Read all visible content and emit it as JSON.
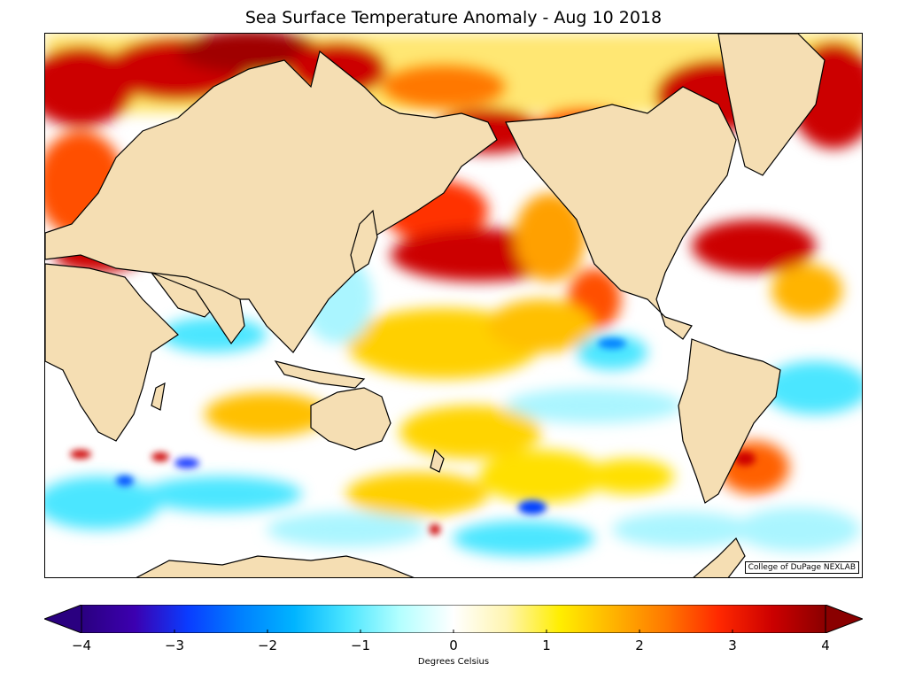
{
  "title": "Sea Surface Temperature Anomaly - Aug 10 2018",
  "credit": "College of DuPage NEXLAB",
  "colorbar": {
    "label": "Degrees Celsius",
    "min": -4,
    "max": 4,
    "ticks": [
      "−4",
      "−3",
      "−2",
      "−1",
      "0",
      "1",
      "2",
      "3",
      "4"
    ],
    "extend": "both",
    "colors": [
      "#2a0080",
      "#3c00b0",
      "#0a3cff",
      "#0080ff",
      "#00b4ff",
      "#4ce6ff",
      "#b4ffff",
      "#ffffff",
      "#fff5b0",
      "#ffee00",
      "#ffb400",
      "#ff7800",
      "#ff2800",
      "#cc0000",
      "#8a0000"
    ]
  },
  "legend": {
    "land_color": "#f5deb3",
    "coast_color": "#000000"
  }
}
